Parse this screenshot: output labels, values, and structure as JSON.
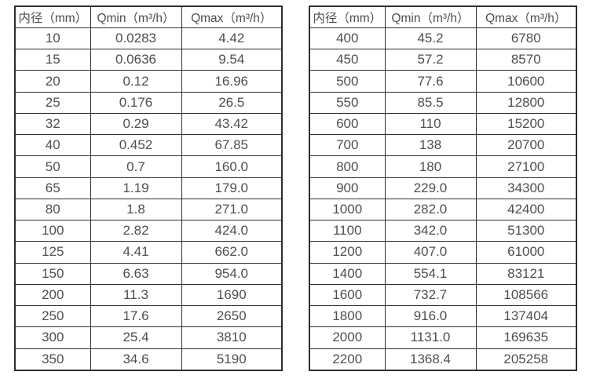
{
  "page": {
    "background_color": "#ffffff",
    "border_color": "#2e2e2e",
    "text_color": "#4f4f4f"
  },
  "tables": [
    {
      "name": "flow-spec-table-small-diameters",
      "headers": [
        "内径（mm）",
        "Qmin（m³/h）",
        "Qmax（m³/h）"
      ],
      "rows": [
        [
          "10",
          "0.0283",
          "4.42"
        ],
        [
          "15",
          "0.0636",
          "9.54"
        ],
        [
          "20",
          "0.12",
          "16.96"
        ],
        [
          "25",
          "0.176",
          "26.5"
        ],
        [
          "32",
          "0.29",
          "43.42"
        ],
        [
          "40",
          "0.452",
          "67.85"
        ],
        [
          "50",
          "0.7",
          "160.0"
        ],
        [
          "65",
          "1.19",
          "179.0"
        ],
        [
          "80",
          "1.8",
          "271.0"
        ],
        [
          "100",
          "2.82",
          "424.0"
        ],
        [
          "125",
          "4.41",
          "662.0"
        ],
        [
          "150",
          "6.63",
          "954.0"
        ],
        [
          "200",
          "11.3",
          "1690"
        ],
        [
          "250",
          "17.6",
          "2650"
        ],
        [
          "300",
          "25.4",
          "3810"
        ],
        [
          "350",
          "34.6",
          "5190"
        ]
      ]
    },
    {
      "name": "flow-spec-table-large-diameters",
      "headers": [
        "内径（mm）",
        "Qmin（m³/h）",
        "Qmax（m³/h）"
      ],
      "rows": [
        [
          "400",
          "45.2",
          "6780"
        ],
        [
          "450",
          "57.2",
          "8570"
        ],
        [
          "500",
          "77.6",
          "10600"
        ],
        [
          "550",
          "85.5",
          "12800"
        ],
        [
          "600",
          "110",
          "15200"
        ],
        [
          "700",
          "138",
          "20700"
        ],
        [
          "800",
          "180",
          "27100"
        ],
        [
          "900",
          "229.0",
          "34300"
        ],
        [
          "1000",
          "282.0",
          "42400"
        ],
        [
          "1100",
          "342.0",
          "51300"
        ],
        [
          "1200",
          "407.0",
          "61000"
        ],
        [
          "1400",
          "554.1",
          "83121"
        ],
        [
          "1600",
          "732.7",
          "108566"
        ],
        [
          "1800",
          "916.0",
          "137404"
        ],
        [
          "2000",
          "1131.0",
          "169635"
        ],
        [
          "2200",
          "1368.4",
          "205258"
        ]
      ]
    }
  ]
}
